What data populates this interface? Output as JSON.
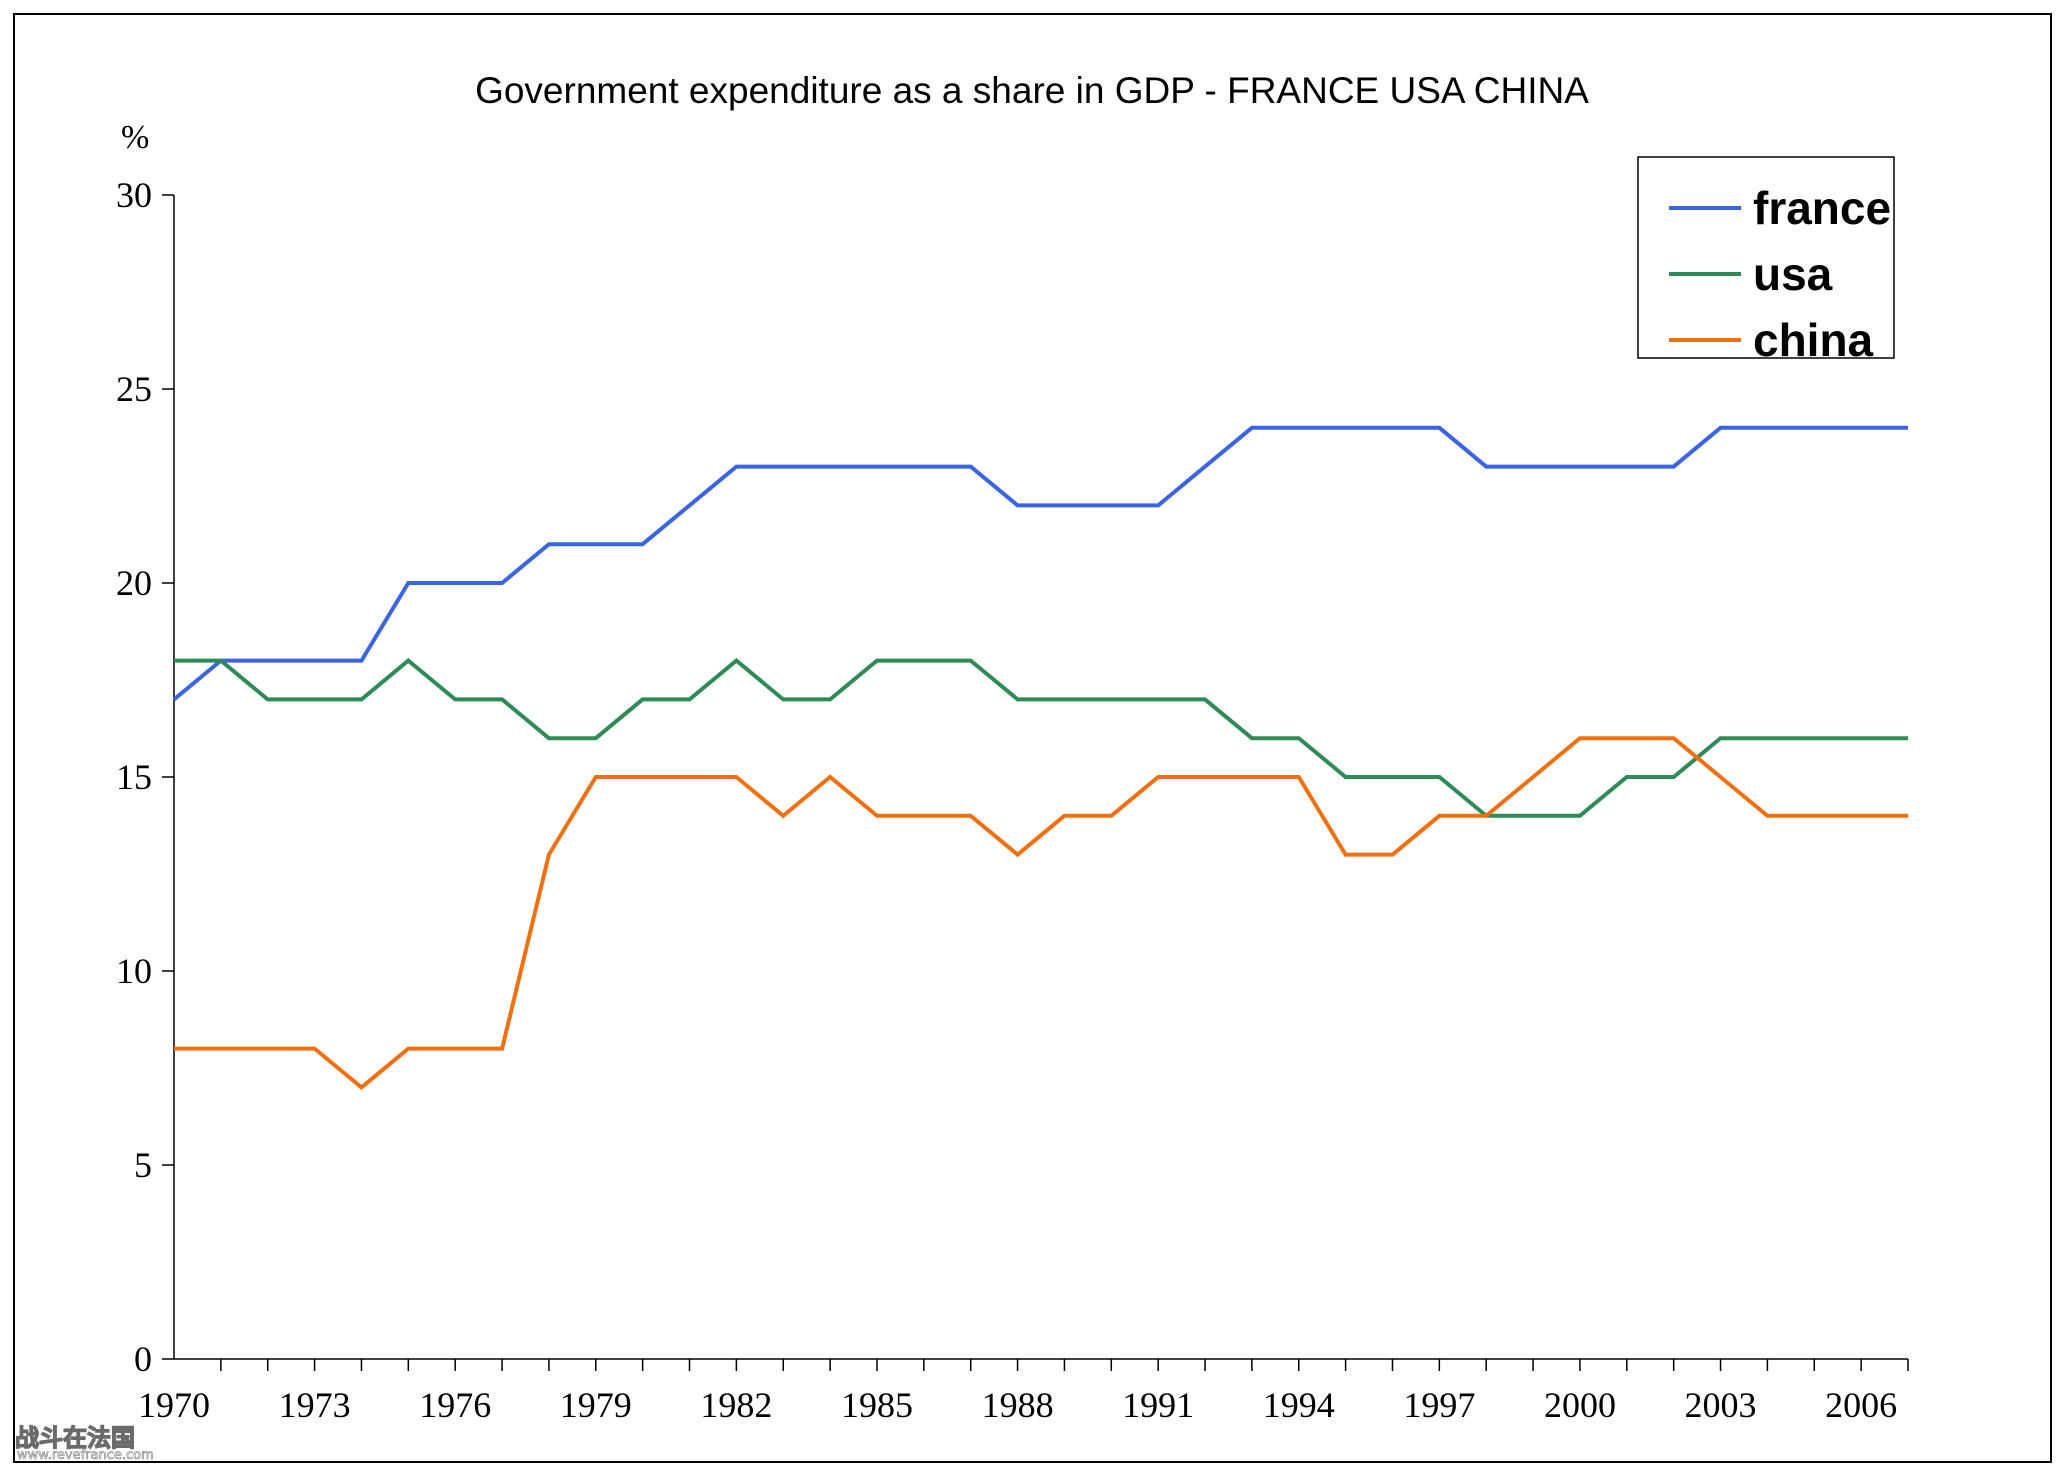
{
  "chart_data": {
    "type": "line",
    "title": "Government expenditure as a share in GDP - FRANCE USA CHINA",
    "ylabel": "%",
    "xlabel": "",
    "ylim": [
      0,
      30
    ],
    "yticks": [
      0,
      5,
      10,
      15,
      20,
      25,
      30
    ],
    "xrange": [
      1970,
      2007
    ],
    "xtick_labels": [
      "1970",
      "1973",
      "1976",
      "1979",
      "1982",
      "1985",
      "1988",
      "1991",
      "1994",
      "1997",
      "2000",
      "2003",
      "2006"
    ],
    "grid": false,
    "legend_position": "top-right",
    "x": [
      1970,
      1971,
      1972,
      1973,
      1974,
      1975,
      1976,
      1977,
      1978,
      1979,
      1980,
      1981,
      1982,
      1983,
      1984,
      1985,
      1986,
      1987,
      1988,
      1989,
      1990,
      1991,
      1992,
      1993,
      1994,
      1995,
      1996,
      1997,
      1998,
      1999,
      2000,
      2001,
      2002,
      2003,
      2004,
      2005,
      2006,
      2007
    ],
    "series": [
      {
        "name": "france",
        "color": "#3b64e0",
        "values": [
          17,
          18,
          18,
          18,
          18,
          20,
          20,
          20,
          21,
          21,
          21,
          22,
          23,
          23,
          23,
          23,
          23,
          23,
          22,
          22,
          22,
          22,
          23,
          24,
          24,
          24,
          24,
          24,
          23,
          23,
          23,
          23,
          23,
          24,
          24,
          24,
          24,
          24
        ]
      },
      {
        "name": "usa",
        "color": "#2e8b57",
        "values": [
          18,
          18,
          17,
          17,
          17,
          18,
          17,
          17,
          16,
          16,
          17,
          17,
          18,
          17,
          17,
          18,
          18,
          18,
          17,
          17,
          17,
          17,
          17,
          16,
          16,
          15,
          15,
          15,
          14,
          14,
          14,
          15,
          15,
          16,
          16,
          16,
          16,
          16
        ]
      },
      {
        "name": "china",
        "color": "#f07010",
        "values": [
          8,
          8,
          8,
          8,
          7,
          8,
          8,
          8,
          13,
          15,
          15,
          15,
          15,
          14,
          15,
          14,
          14,
          14,
          13,
          14,
          14,
          15,
          15,
          15,
          15,
          13,
          13,
          14,
          14,
          15,
          16,
          16,
          16,
          15,
          14,
          14,
          14,
          14
        ]
      }
    ]
  },
  "watermark": {
    "line1": "战斗在法国",
    "line2": "www.revefrance.com"
  }
}
